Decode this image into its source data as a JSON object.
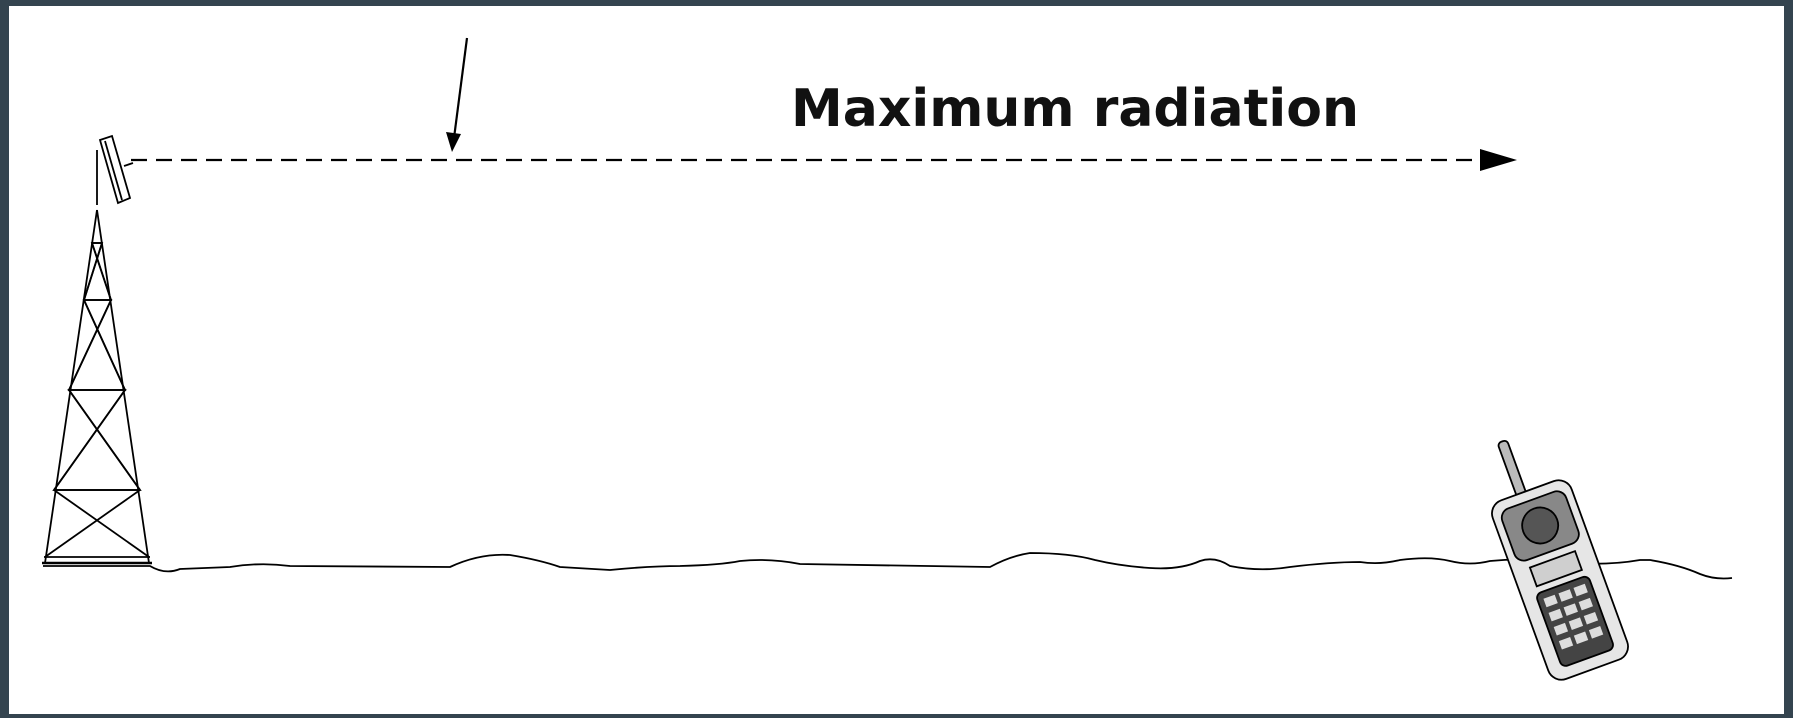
{
  "label": "Maximum radiation"
}
